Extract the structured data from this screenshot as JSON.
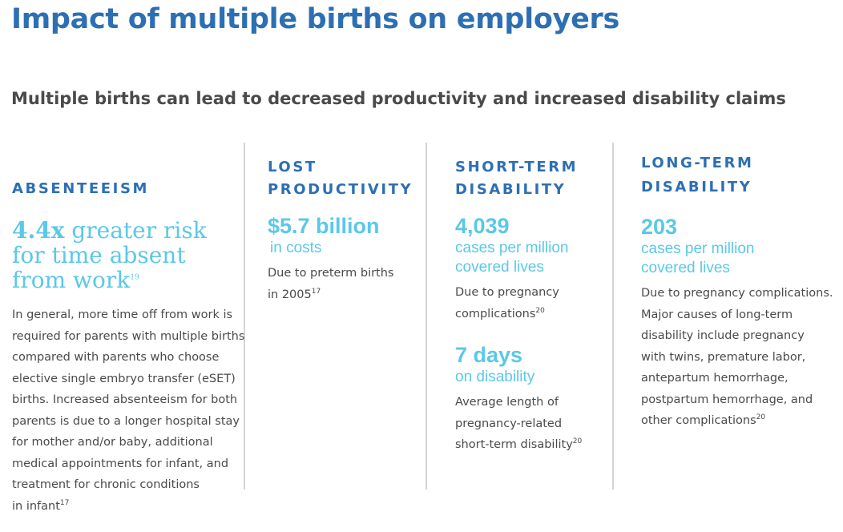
{
  "title": "Impact of multiple births on employers",
  "subtitle": "Multiple births can lead to decreased productivity and increased disability claims",
  "columns": {
    "absenteeism": {
      "heading": "ABSENTEEISM",
      "stat_value": "4.4x",
      "stat_text_1": "greater risk",
      "stat_text_2": "for time absent",
      "stat_text_3": "from work",
      "stat_ref": "19",
      "body_lines": [
        "In general, more time off from work is",
        "required for parents with multiple births",
        "compared with parents who choose",
        "elective single embryo transfer (eSET)",
        "births. Increased absenteeism for both",
        "parents is due to a longer hospital stay",
        "for mother and/or baby, additional",
        "medical appointments for infant, and",
        "treatment for chronic conditions",
        "in infant"
      ],
      "body_ref": "17"
    },
    "lost_productivity": {
      "heading_1": "LOST",
      "heading_2": "PRODUCTIVITY",
      "stat_value": "$5.7 billion",
      "stat_sub": "in costs",
      "body_1": "Due to preterm births",
      "body_2": "in 2005",
      "body_ref": "17"
    },
    "short_term": {
      "heading_1": "SHORT-TERM",
      "heading_2": "DISABILITY",
      "stat1_value": "4,039",
      "stat1_sub_1": "cases per million",
      "stat1_sub_2": "covered lives",
      "stat1_body_1": "Due to pregnancy",
      "stat1_body_2": "complications",
      "stat1_ref": "20",
      "stat2_value": "7 days",
      "stat2_sub": "on disability",
      "stat2_body_1": "Average length of",
      "stat2_body_2": "pregnancy-related",
      "stat2_body_3": "short-term disability",
      "stat2_ref": "20"
    },
    "long_term": {
      "heading_1": "LONG-TERM",
      "heading_2": "DISABILITY",
      "stat_value": "203",
      "stat_sub_1": "cases per million",
      "stat_sub_2": "covered lives",
      "body_lines": [
        "Due to pregnancy complications.",
        "Major causes of long-term",
        "disability include pregnancy",
        "with twins, premature labor,",
        "antepartum hemorrhage,",
        "postpartum hemorrhage, and",
        "other complications"
      ],
      "body_ref": "20"
    }
  },
  "colors": {
    "title_blue": "#2d6fb3",
    "accent_cyan": "#5ac8e8",
    "body_gray": "#4a4a4a",
    "divider": "#d4d4d4"
  }
}
